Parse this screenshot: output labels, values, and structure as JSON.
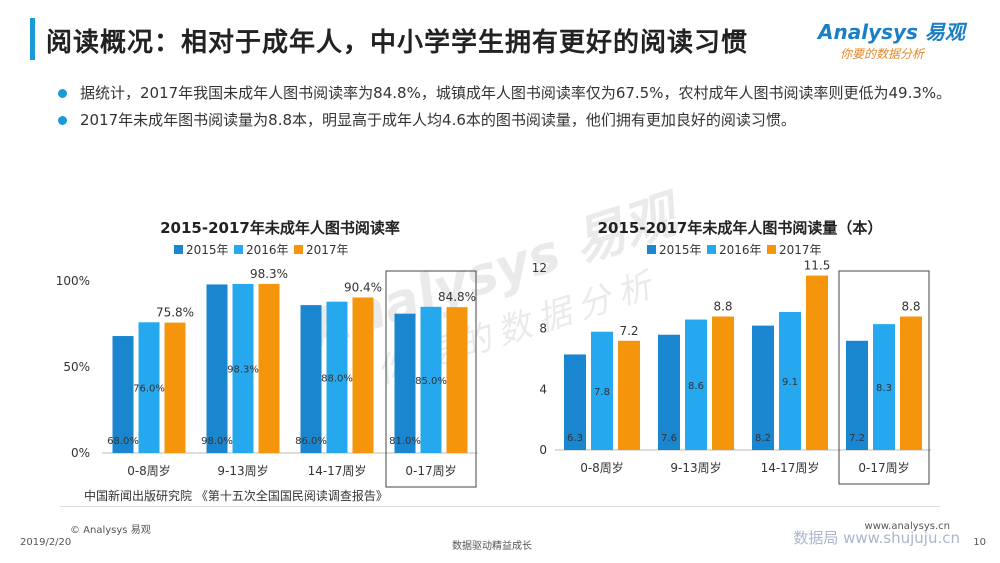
{
  "title": "阅读概况：相对于成年人，中小学学生拥有更好的阅读习惯",
  "logo": {
    "brand": "Analysys 易观",
    "tagline": "你要的数据分析"
  },
  "bullets": [
    "据统计，2017年我国未成年人图书阅读率为84.8%，城镇成年人图书阅读率仅为67.5%，农村成年人图书阅读率则更低为49.3%。",
    "2017年未成年图书阅读量为8.8本，明显高于成年人均4.6本的图书阅读量，他们拥有更加良好的阅读习惯。"
  ],
  "colors": {
    "s2015": "#1a86d0",
    "s2016": "#26a8ee",
    "s2017": "#f5950c",
    "accent": "#1a9ad6"
  },
  "watermark": {
    "brand": "Analysys 易观",
    "tagline": "你要的数据分析"
  },
  "chart_data": [
    {
      "type": "bar",
      "title": "2015-2017年未成年人图书阅读率",
      "categories": [
        "0-8周岁",
        "9-13周岁",
        "14-17周岁",
        "0-17周岁"
      ],
      "series": [
        {
          "name": "2015年",
          "values": [
            68.0,
            98.0,
            86.0,
            81.0
          ],
          "labels": [
            "68.0%",
            "98.0%",
            "86.0%",
            "81.0%"
          ]
        },
        {
          "name": "2016年",
          "values": [
            76.0,
            98.3,
            88.0,
            85.0
          ],
          "labels": [
            "76.0%",
            "98.3%",
            "88.0%",
            "85.0%"
          ]
        },
        {
          "name": "2017年",
          "values": [
            75.8,
            98.3,
            90.4,
            84.8
          ],
          "labels": [
            "75.8%",
            "98.3%",
            "90.4%",
            "84.8%"
          ]
        }
      ],
      "yticks": [
        "0%",
        "50%",
        "100%"
      ],
      "ytick_values": [
        0,
        50,
        100
      ],
      "ylim": [
        0,
        100
      ],
      "highlight_category": "0-17周岁",
      "legend": "top"
    },
    {
      "type": "bar",
      "title": "2015-2017年未成年人图书阅读量（本）",
      "categories": [
        "0-8周岁",
        "9-13周岁",
        "14-17周岁",
        "0-17周岁"
      ],
      "series": [
        {
          "name": "2015年",
          "values": [
            6.3,
            7.6,
            8.2,
            7.2
          ],
          "labels": [
            "6.3",
            "7.6",
            "8.2",
            "7.2"
          ]
        },
        {
          "name": "2016年",
          "values": [
            7.8,
            8.6,
            9.1,
            8.3
          ],
          "labels": [
            "7.8",
            "8.6",
            "9.1",
            "8.3"
          ]
        },
        {
          "name": "2017年",
          "values": [
            7.2,
            8.8,
            11.5,
            8.8
          ],
          "labels": [
            "7.2",
            "8.8",
            "11.5",
            "8.8"
          ]
        }
      ],
      "yticks": [
        "0",
        "4",
        "8",
        "12"
      ],
      "ytick_values": [
        0,
        4,
        8,
        12
      ],
      "ylim": [
        0,
        12
      ],
      "highlight_category": "0-17周岁",
      "legend": "top"
    }
  ],
  "source": "中国新闻出版研究院 《第十五次全国国民阅读调查报告》",
  "footer": {
    "copyright": "© Analysys 易观",
    "date": "2019/2/20",
    "slogan": "数据驱动精益成长",
    "url": "www.analysys.cn",
    "page": "10",
    "site_mark": "数据局 www.shujuju.cn"
  }
}
